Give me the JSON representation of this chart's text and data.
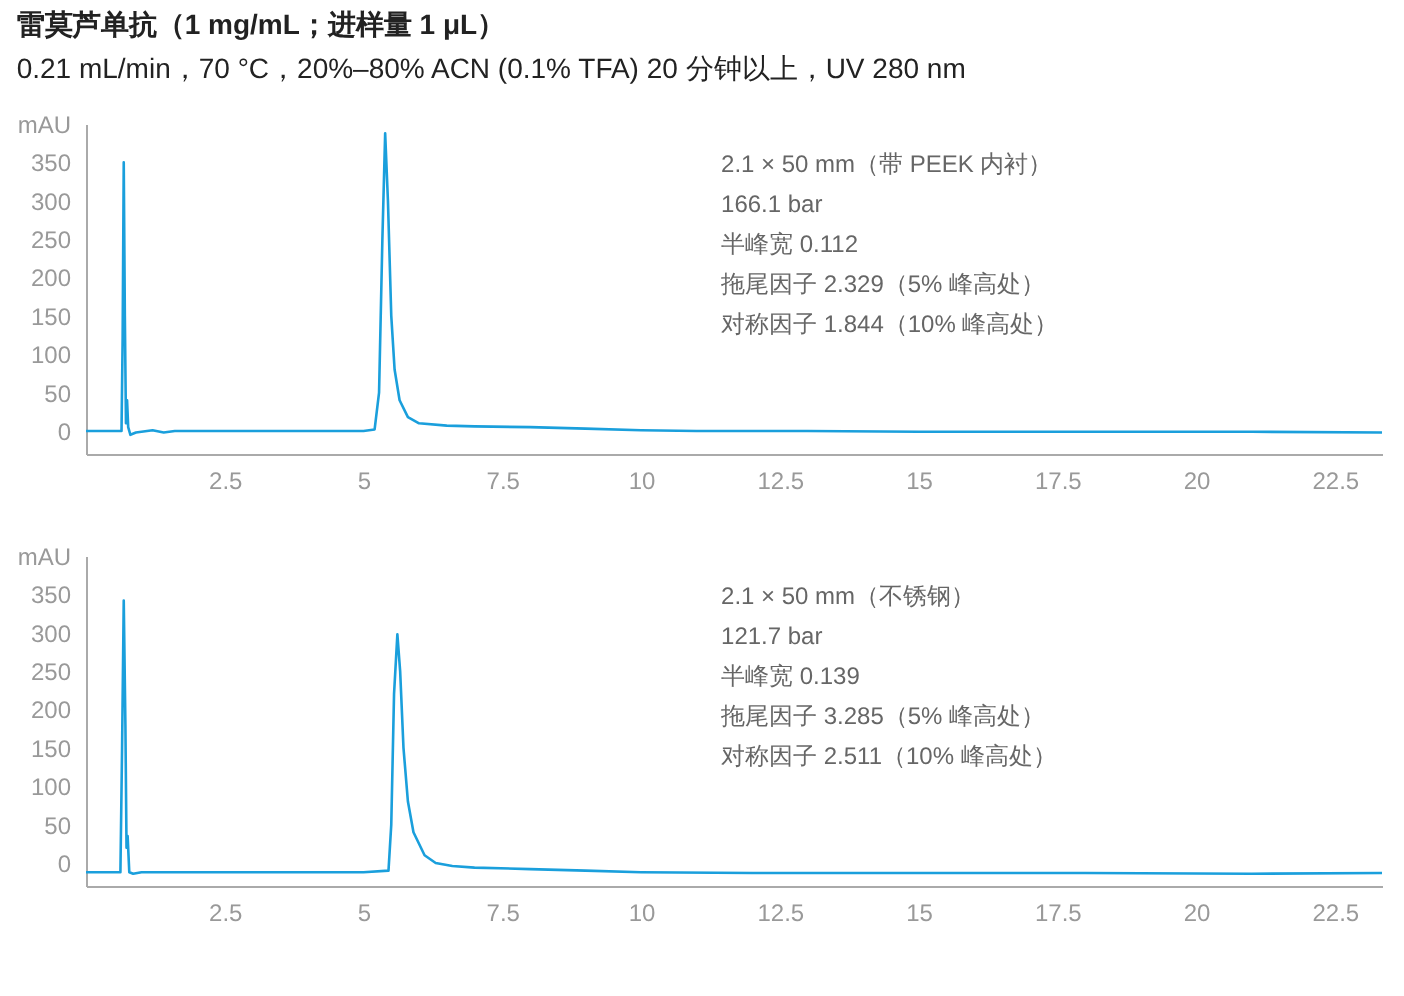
{
  "chart_data": [
    {
      "type": "line",
      "title": "雷莫芦单抗（1 mg/mL；进样量 1 μL）",
      "subtitle": "0.21 mL/min，70 °C，20%–80% ACN (0.1% TFA) 20 分钟以上，UV 280 nm",
      "annotations": [
        "2.1 × 50 mm（带 PEEK 内衬）",
        "166.1 bar",
        "半峰宽 0.112",
        "拖尾因子 2.329（5% 峰高处）",
        "对称因子 1.844（10% 峰高处）"
      ],
      "x": [
        0,
        0.6,
        0.64,
        0.66,
        0.68,
        0.7,
        0.72,
        0.74,
        0.76,
        0.8,
        0.9,
        1.2,
        1.4,
        1.6,
        2,
        3,
        4,
        5,
        5.2,
        5.28,
        5.34,
        5.39,
        5.44,
        5.5,
        5.56,
        5.65,
        5.8,
        6,
        6.5,
        7,
        8,
        9,
        10,
        11,
        13,
        15,
        18,
        21,
        23.35
      ],
      "series": [
        {
          "color": "#1a9fdc",
          "values": [
            0,
            0,
            0,
            120,
            350,
            150,
            10,
            40,
            5,
            -5,
            -2,
            1,
            -2,
            0,
            0,
            0,
            0,
            0,
            2,
            50,
            250,
            388,
            300,
            150,
            80,
            40,
            18,
            10,
            7,
            6,
            5,
            3,
            1,
            0,
            0,
            -1,
            -1,
            -1,
            -2
          ]
        }
      ],
      "xlim": [
        0,
        23.35
      ],
      "ylim": [
        -30,
        400
      ],
      "xticks": [
        2.5,
        5,
        7.5,
        10,
        12.5,
        15,
        17.5,
        20,
        22.5
      ],
      "yticks": [
        0,
        50,
        100,
        150,
        200,
        250,
        300,
        350,
        {
          "value": 400,
          "label": "mAU"
        }
      ],
      "grid": false,
      "line_style": "solid"
    },
    {
      "type": "line",
      "annotations": [
        "2.1 × 50 mm（不锈钢）",
        "121.7 bar",
        "半峰宽 0.139",
        "拖尾因子 3.285（5% 峰高处）",
        "对称因子 2.511（10% 峰高处）"
      ],
      "x": [
        0,
        0.62,
        0.65,
        0.68,
        0.71,
        0.73,
        0.75,
        0.78,
        0.85,
        1,
        2,
        3,
        4,
        5,
        5.45,
        5.5,
        5.55,
        5.61,
        5.66,
        5.72,
        5.8,
        5.9,
        6.1,
        6.3,
        6.6,
        7,
        8,
        9,
        10,
        12,
        15,
        18,
        21,
        23.35
      ],
      "series": [
        {
          "color": "#1a9fdc",
          "values": [
            -12,
            -12,
            150,
            342,
            180,
            20,
            35,
            -12,
            -14,
            -12,
            -12,
            -12,
            -12,
            -12,
            -10,
            50,
            220,
            298,
            250,
            150,
            80,
            40,
            10,
            0,
            -4,
            -6,
            -8,
            -10,
            -12,
            -13,
            -13,
            -13,
            -14,
            -13
          ]
        }
      ],
      "xlim": [
        0,
        23.35
      ],
      "ylim": [
        -30,
        400
      ],
      "xticks": [
        2.5,
        5,
        7.5,
        10,
        12.5,
        15,
        17.5,
        20,
        22.5
      ],
      "yticks": [
        0,
        50,
        100,
        150,
        200,
        250,
        300,
        350,
        {
          "value": 400,
          "label": "mAU"
        }
      ],
      "grid": false,
      "line_style": "solid"
    }
  ]
}
